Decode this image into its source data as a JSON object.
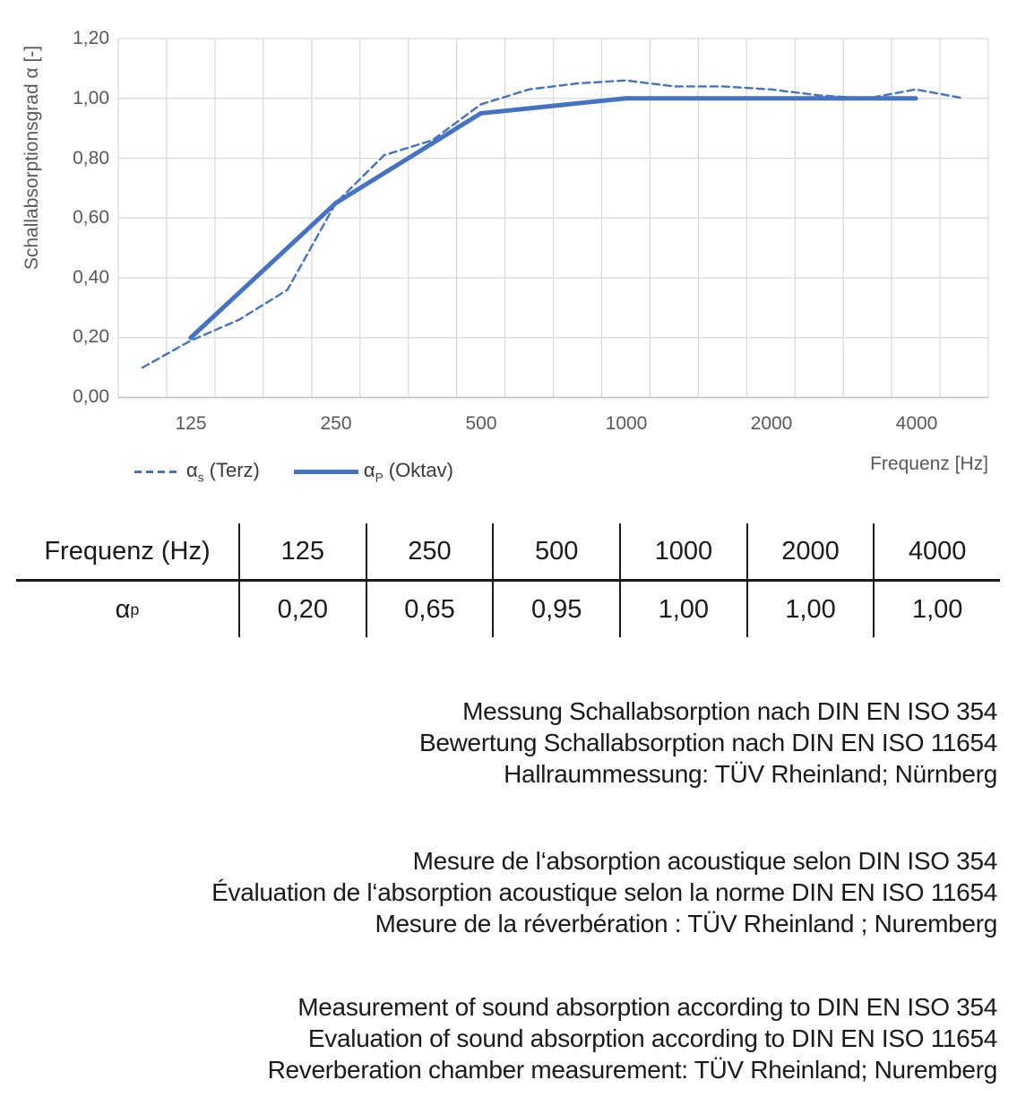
{
  "style": {
    "accent_blue": "#4472C4",
    "grid_color": "#D9D9D9",
    "axis_color": "#BFBFBF",
    "text_gray": "#595959",
    "text_dark": "#1A1A1A"
  },
  "chart_data": {
    "type": "line",
    "title": "",
    "xlabel": "Frequenz [Hz]",
    "ylabel": "Schallabsorptionsgrad α [-]",
    "ylim": [
      0.0,
      1.2
    ],
    "ytick_step": 0.2,
    "ytick_labels": [
      "0,00",
      "0,20",
      "0,40",
      "0,60",
      "0,80",
      "1,00",
      "1,20"
    ],
    "x_scale": "third-octave-band categories",
    "categories": [
      100,
      125,
      160,
      200,
      250,
      315,
      400,
      500,
      630,
      800,
      1000,
      1250,
      1600,
      2000,
      2500,
      3150,
      4000,
      5000
    ],
    "xtick_labels": [
      "125",
      "250",
      "500",
      "1000",
      "2000",
      "4000"
    ],
    "grid": true,
    "legend_position": "bottom-left",
    "series": [
      {
        "name": "αs (Terz)",
        "line_style": "dashed",
        "color": "#4472C4",
        "x": [
          100,
          125,
          160,
          200,
          250,
          315,
          400,
          500,
          630,
          800,
          1000,
          1250,
          1600,
          2000,
          2500,
          3150,
          4000,
          5000
        ],
        "values": [
          0.1,
          0.19,
          0.26,
          0.36,
          0.65,
          0.81,
          0.86,
          0.98,
          1.03,
          1.05,
          1.06,
          1.04,
          1.04,
          1.03,
          1.01,
          1.0,
          1.03,
          1.0
        ]
      },
      {
        "name": "αP (Oktav)",
        "line_style": "solid",
        "color": "#4472C4",
        "x": [
          125,
          250,
          500,
          1000,
          2000,
          4000
        ],
        "values": [
          0.2,
          0.65,
          0.95,
          1.0,
          1.0,
          1.0
        ]
      }
    ]
  },
  "legend": {
    "items": [
      {
        "base": "α",
        "sub": "s",
        "rest": " (Terz)",
        "line_style": "dashed"
      },
      {
        "base": "α",
        "sub": "P",
        "rest": " (Oktav)",
        "line_style": "solid"
      }
    ]
  },
  "table": {
    "headers": [
      "Frequenz (Hz)",
      "125",
      "250",
      "500",
      "1000",
      "2000",
      "4000"
    ],
    "row_label": {
      "base": "α",
      "sub": "p"
    },
    "values": [
      "0,20",
      "0,65",
      "0,95",
      "1,00",
      "1,00",
      "1,00"
    ]
  },
  "notes": {
    "de": [
      "Messung Schallabsorption nach DIN EN ISO 354",
      "Bewertung Schallabsorption nach DIN EN ISO 11654",
      "Hallraummessung: TÜV Rheinland; Nürnberg"
    ],
    "fr": [
      "Mesure de l‘absorption acoustique selon DIN ISO 354",
      "Évaluation de l‘absorption acoustique selon la norme DIN EN ISO 11654",
      "Mesure de la réverbération : TÜV Rheinland ; Nuremberg"
    ],
    "en": [
      "Measurement of sound absorption according to DIN EN ISO 354",
      "Evaluation of sound absorption according to DIN EN ISO 11654",
      "Reverberation chamber measurement: TÜV Rheinland; Nuremberg"
    ]
  }
}
